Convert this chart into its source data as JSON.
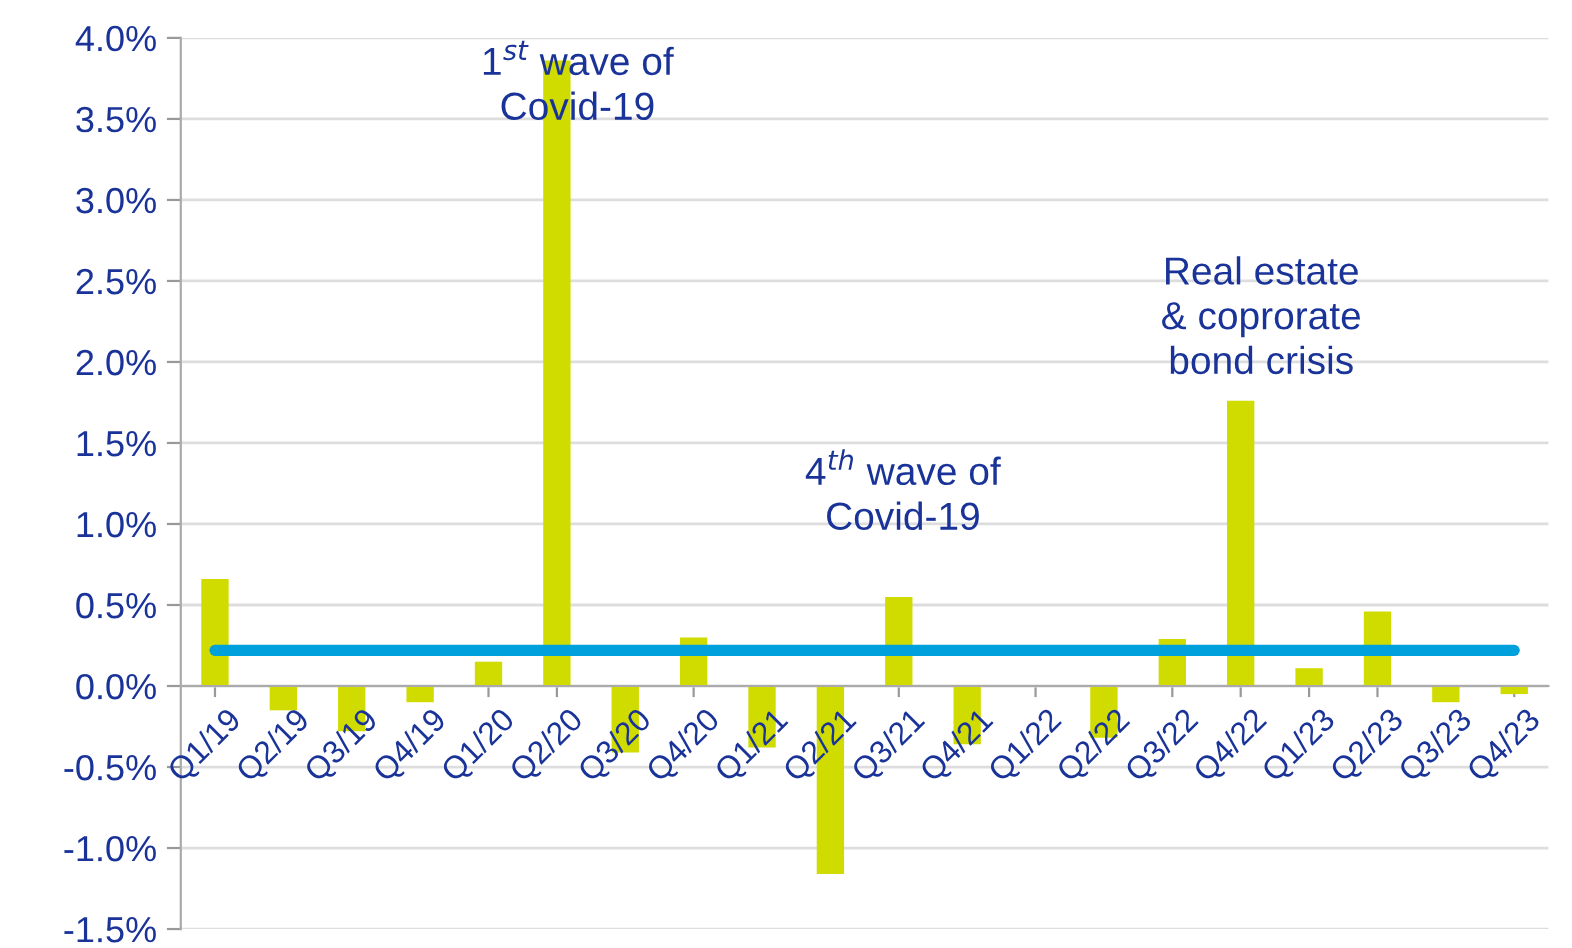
{
  "chart_data": {
    "type": "bar",
    "categories": [
      "Q1/19",
      "Q2/19",
      "Q3/19",
      "Q4/19",
      "Q1/20",
      "Q2/20",
      "Q3/20",
      "Q4/20",
      "Q1/21",
      "Q2/21",
      "Q3/21",
      "Q4/21",
      "Q1/22",
      "Q2/22",
      "Q3/22",
      "Q4/22",
      "Q1/23",
      "Q2/23",
      "Q3/23",
      "Q4/23"
    ],
    "series": [
      {
        "color": "#d0dc00",
        "values": [
          0.66,
          -0.15,
          -0.28,
          -0.1,
          0.15,
          3.86,
          -0.41,
          0.3,
          -0.38,
          -1.16,
          0.55,
          -0.36,
          0,
          -0.32,
          0.29,
          1.76,
          0.11,
          0.46,
          -0.1,
          -0.05
        ]
      },
      {
        "type": "line",
        "color": "#00a0dc",
        "values": [
          0.22,
          0.22,
          0.22,
          0.22,
          0.22,
          0.22,
          0.22,
          0.22,
          0.22,
          0.22,
          0.22,
          0.22,
          0.22,
          0.22,
          0.22,
          0.22,
          0.22,
          0.22,
          0.22,
          0.22
        ]
      }
    ],
    "ylim": [
      -1.5,
      4.0
    ],
    "yticks": [
      {
        "value": -1.5,
        "label": "-1.5%"
      },
      {
        "value": -1.0,
        "label": "-1.0%"
      },
      {
        "value": -0.5,
        "label": "-0.5%"
      },
      {
        "value": 0.0,
        "label": "0.0%"
      },
      {
        "value": 0.5,
        "label": "0.5%"
      },
      {
        "value": 1.0,
        "label": "1.0%"
      },
      {
        "value": 1.5,
        "label": "1.5%"
      },
      {
        "value": 2.0,
        "label": "2.0%"
      },
      {
        "value": 2.5,
        "label": "2.5%"
      },
      {
        "value": 3.0,
        "label": "3.0%"
      },
      {
        "value": 3.5,
        "label": "3.5%"
      },
      {
        "value": 4.0,
        "label": "4.0%"
      }
    ],
    "grid": "y",
    "legend": false,
    "annotations": [
      "1$^{st}$ wave of\nCovid-19",
      "4$^{th}$ wave of\nCovid-19",
      "Real estate\n& coprorate\nbond crisis"
    ]
  }
}
